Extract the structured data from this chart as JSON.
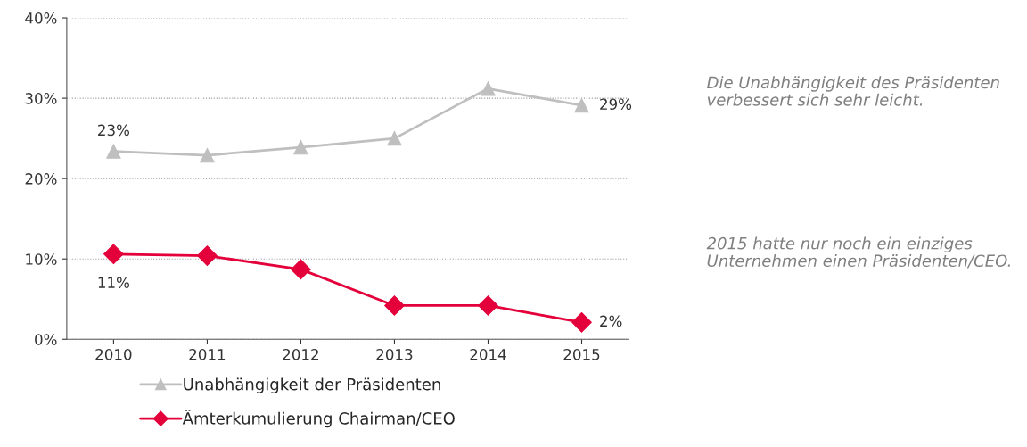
{
  "chart_data": {
    "type": "line",
    "categories": [
      "2010",
      "2011",
      "2012",
      "2013",
      "2014",
      "2015"
    ],
    "series": [
      {
        "name": "Unabhängigkeit der Präsidenten",
        "color": "#bfbfbf",
        "marker": "triangle",
        "values": [
          23.4,
          22.9,
          23.9,
          25.0,
          31.2,
          29.1
        ],
        "value_labels": [
          "23%",
          null,
          null,
          null,
          null,
          "29%"
        ]
      },
      {
        "name": "Ämterkumulierung Chairman/CEO",
        "color": "#e4003a",
        "marker": "diamond",
        "values": [
          10.6,
          10.4,
          8.7,
          4.2,
          4.2,
          2.1
        ],
        "value_labels": [
          "11%",
          null,
          null,
          null,
          null,
          "2%"
        ]
      }
    ],
    "ylim": [
      0,
      40
    ],
    "yticks": [
      {
        "value": 0,
        "label": "0%"
      },
      {
        "value": 10,
        "label": "10%"
      },
      {
        "value": 20,
        "label": "20%"
      },
      {
        "value": 30,
        "label": "30%"
      },
      {
        "value": 40,
        "label": "40%"
      }
    ],
    "grid": "y",
    "legend": "bottom",
    "line_style": "solid",
    "annotations": [
      "Die Unabhängigkeit des Präsidenten verbessert sich sehr leicht.",
      "2015 hatte nur noch ein einziges Unternehmen einen Präsidenten/CEO."
    ]
  }
}
